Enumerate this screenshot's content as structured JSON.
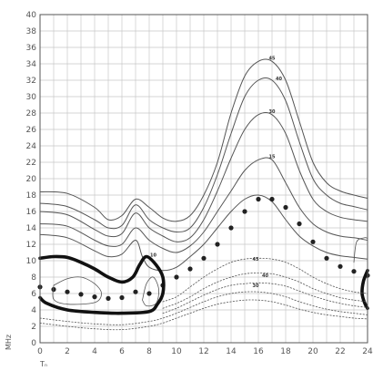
{
  "chart_data": {
    "type": "line",
    "title": "",
    "xlabel": "Tₙ",
    "ylabel": "MHz",
    "xlim": [
      0,
      24
    ],
    "ylim": [
      0,
      40
    ],
    "x_ticks": [
      "0",
      "2",
      "4",
      "6",
      "8",
      "10",
      "12",
      "14",
      "16",
      "18",
      "20",
      "22",
      "24"
    ],
    "y_ticks": [
      "0",
      "2",
      "4",
      "6",
      "8",
      "10",
      "12",
      "14",
      "16",
      "18",
      "20",
      "22",
      "24",
      "26",
      "28",
      "30",
      "32",
      "34",
      "36",
      "38",
      "40"
    ],
    "grid": true,
    "series": [
      {
        "name": "",
        "label": "45",
        "label_at": [
          17.0,
          34.5
        ],
        "style": "solid",
        "points": [
          [
            0,
            18.4
          ],
          [
            2,
            18.2
          ],
          [
            4,
            16.5
          ],
          [
            5,
            15.0
          ],
          [
            6,
            15.5
          ],
          [
            7,
            17.5
          ],
          [
            8,
            16.5
          ],
          [
            9,
            15.2
          ],
          [
            10,
            14.8
          ],
          [
            11,
            15.5
          ],
          [
            12,
            18.0
          ],
          [
            13,
            22.0
          ],
          [
            14,
            28.0
          ],
          [
            15,
            32.5
          ],
          [
            16,
            34.3
          ],
          [
            17,
            34.3
          ],
          [
            18,
            32.0
          ],
          [
            19,
            27.0
          ],
          [
            20,
            22.0
          ],
          [
            21,
            19.5
          ],
          [
            22,
            18.5
          ],
          [
            23,
            18.0
          ],
          [
            24,
            17.6
          ]
        ]
      },
      {
        "name": "",
        "label": "40",
        "label_at": [
          17.5,
          32.0
        ],
        "style": "solid",
        "points": [
          [
            0,
            17.0
          ],
          [
            2,
            16.6
          ],
          [
            4,
            15.0
          ],
          [
            5,
            14.0
          ],
          [
            6,
            14.3
          ],
          [
            7,
            16.8
          ],
          [
            8,
            15.0
          ],
          [
            9,
            14.0
          ],
          [
            10,
            13.5
          ],
          [
            11,
            14.0
          ],
          [
            12,
            16.5
          ],
          [
            13,
            20.5
          ],
          [
            14,
            25.5
          ],
          [
            15,
            30.0
          ],
          [
            16,
            32.0
          ],
          [
            17,
            32.0
          ],
          [
            18,
            29.5
          ],
          [
            19,
            24.5
          ],
          [
            20,
            20.0
          ],
          [
            21,
            18.0
          ],
          [
            22,
            17.0
          ],
          [
            23,
            16.6
          ],
          [
            24,
            16.2
          ]
        ]
      },
      {
        "name": "",
        "label": "30",
        "label_at": [
          17.0,
          28.0
        ],
        "style": "solid",
        "points": [
          [
            0,
            16.0
          ],
          [
            2,
            15.6
          ],
          [
            4,
            13.8
          ],
          [
            5,
            13.0
          ],
          [
            6,
            13.3
          ],
          [
            7,
            15.8
          ],
          [
            8,
            14.0
          ],
          [
            9,
            13.0
          ],
          [
            10,
            12.3
          ],
          [
            11,
            12.8
          ],
          [
            12,
            15.0
          ],
          [
            13,
            18.5
          ],
          [
            14,
            22.5
          ],
          [
            15,
            26.0
          ],
          [
            16,
            27.8
          ],
          [
            17,
            27.8
          ],
          [
            18,
            25.5
          ],
          [
            19,
            21.0
          ],
          [
            20,
            17.5
          ],
          [
            21,
            16.0
          ],
          [
            22,
            15.3
          ],
          [
            23,
            15.0
          ],
          [
            24,
            14.8
          ]
        ]
      },
      {
        "name": "",
        "label": "15",
        "label_at": [
          17.0,
          22.5
        ],
        "style": "solid",
        "points": [
          [
            0,
            14.5
          ],
          [
            2,
            14.2
          ],
          [
            4,
            12.5
          ],
          [
            5,
            11.8
          ],
          [
            6,
            12.0
          ],
          [
            7,
            14.0
          ],
          [
            8,
            12.5
          ],
          [
            9,
            11.5
          ],
          [
            10,
            11.0
          ],
          [
            11,
            11.8
          ],
          [
            12,
            13.5
          ],
          [
            13,
            16.0
          ],
          [
            14,
            18.5
          ],
          [
            15,
            21.0
          ],
          [
            16,
            22.3
          ],
          [
            17,
            22.3
          ],
          [
            18,
            19.5
          ],
          [
            19,
            16.5
          ],
          [
            20,
            14.5
          ],
          [
            21,
            13.5
          ],
          [
            22,
            13.0
          ],
          [
            23,
            12.8
          ],
          [
            24,
            12.5
          ]
        ]
      },
      {
        "name": "",
        "label": "10",
        "label_at": [
          8.3,
          10.5
        ],
        "style": "solid",
        "points": [
          [
            0,
            13.2
          ],
          [
            2,
            12.8
          ],
          [
            4,
            11.2
          ],
          [
            5,
            10.5
          ],
          [
            6,
            10.8
          ],
          [
            7,
            12.5
          ],
          [
            7.5,
            10.5
          ],
          [
            8,
            9.2
          ],
          [
            9,
            8.8
          ],
          [
            10,
            9.2
          ],
          [
            11,
            10.5
          ],
          [
            12,
            12.0
          ],
          [
            13,
            14.0
          ],
          [
            14,
            16.0
          ],
          [
            15,
            17.5
          ],
          [
            16,
            18.0
          ],
          [
            17,
            17.2
          ],
          [
            18,
            15.0
          ],
          [
            19,
            13.0
          ],
          [
            20,
            11.8
          ],
          [
            21,
            11.0
          ],
          [
            22,
            10.6
          ],
          [
            23,
            10.4
          ],
          [
            24,
            10.2
          ]
        ]
      },
      {
        "name": "",
        "label": "",
        "style": "dots",
        "points": [
          [
            0,
            6.8
          ],
          [
            1,
            6.5
          ],
          [
            2,
            6.2
          ],
          [
            3,
            5.9
          ],
          [
            4,
            5.6
          ],
          [
            5,
            5.4
          ],
          [
            6,
            5.5
          ],
          [
            7,
            6.2
          ],
          [
            8,
            6.0
          ],
          [
            9,
            7.0
          ],
          [
            10,
            8.0
          ],
          [
            11,
            9.0
          ],
          [
            12,
            10.3
          ],
          [
            13,
            12.0
          ],
          [
            14,
            14.0
          ],
          [
            15,
            16.0
          ],
          [
            16,
            17.5
          ],
          [
            17,
            17.5
          ],
          [
            18,
            16.5
          ],
          [
            19,
            14.5
          ],
          [
            20,
            12.3
          ],
          [
            21,
            10.3
          ],
          [
            22,
            9.3
          ],
          [
            23,
            8.7
          ],
          [
            24,
            8.2
          ]
        ]
      },
      {
        "name": "",
        "label": "",
        "style": "thick",
        "points": [
          [
            0,
            10.3
          ],
          [
            1,
            10.5
          ],
          [
            2,
            10.4
          ],
          [
            3,
            9.8
          ],
          [
            4,
            9.0
          ],
          [
            5,
            8.0
          ],
          [
            6,
            7.4
          ],
          [
            6.8,
            8.0
          ],
          [
            7.3,
            9.5
          ],
          [
            7.8,
            10.5
          ],
          [
            8.5,
            9.5
          ],
          [
            9,
            8.0
          ],
          [
            9,
            6.0
          ],
          [
            8.6,
            4.7
          ],
          [
            8,
            3.8
          ],
          [
            6,
            3.6
          ],
          [
            4,
            3.7
          ],
          [
            2,
            4.0
          ],
          [
            0.5,
            4.8
          ],
          [
            0,
            5.5
          ]
        ]
      },
      {
        "name": "",
        "label": "",
        "style": "thick",
        "points": [
          [
            24,
            8.8
          ],
          [
            23.7,
            7.5
          ],
          [
            23.6,
            6.0
          ],
          [
            23.8,
            4.8
          ],
          [
            24,
            4.2
          ]
        ]
      },
      {
        "name": "",
        "label": "",
        "style": "solid-thin",
        "points": [
          [
            1,
            7.0
          ],
          [
            2,
            7.8
          ],
          [
            3,
            8.0
          ],
          [
            4,
            7.2
          ],
          [
            4.5,
            6.0
          ],
          [
            4,
            4.9
          ],
          [
            2,
            4.7
          ],
          [
            1,
            5.3
          ],
          [
            1,
            7.0
          ]
        ]
      },
      {
        "name": "",
        "label": "",
        "style": "solid-thin",
        "points": [
          [
            7.5,
            5.2
          ],
          [
            7.8,
            7.2
          ],
          [
            8.3,
            8.0
          ],
          [
            8.7,
            6.5
          ],
          [
            8.5,
            4.8
          ],
          [
            7.8,
            4.5
          ],
          [
            7.5,
            5.2
          ]
        ]
      },
      {
        "name": "",
        "label": "",
        "style": "solid-thin",
        "points": [
          [
            23,
            9.8
          ],
          [
            23.2,
            12.3
          ],
          [
            23.8,
            12.8
          ],
          [
            24,
            12.7
          ]
        ]
      },
      {
        "name": "",
        "label": "45",
        "label_at": [
          15.8,
          10.0
        ],
        "style": "dashed",
        "points": [
          [
            9,
            5.0
          ],
          [
            10,
            5.6
          ],
          [
            11,
            6.8
          ],
          [
            12,
            8.0
          ],
          [
            13,
            9.0
          ],
          [
            14,
            9.8
          ],
          [
            15,
            10.2
          ],
          [
            16,
            10.3
          ],
          [
            17,
            10.2
          ],
          [
            18,
            9.8
          ],
          [
            19,
            9.0
          ],
          [
            20,
            8.0
          ],
          [
            21,
            7.2
          ],
          [
            22,
            6.6
          ],
          [
            23,
            6.2
          ],
          [
            24,
            6.0
          ]
        ]
      },
      {
        "name": "",
        "label": "40",
        "label_at": [
          16.5,
          8.0
        ],
        "style": "dashed",
        "points": [
          [
            9,
            4.2
          ],
          [
            10,
            4.8
          ],
          [
            11,
            5.6
          ],
          [
            12,
            6.6
          ],
          [
            13,
            7.4
          ],
          [
            14,
            8.0
          ],
          [
            15,
            8.4
          ],
          [
            16,
            8.5
          ],
          [
            17,
            8.4
          ],
          [
            18,
            8.0
          ],
          [
            19,
            7.4
          ],
          [
            20,
            6.6
          ],
          [
            21,
            6.0
          ],
          [
            22,
            5.5
          ],
          [
            23,
            5.2
          ],
          [
            24,
            5.0
          ]
        ]
      },
      {
        "name": "",
        "label": "30",
        "label_at": [
          15.8,
          6.8
        ],
        "style": "dashed",
        "points": [
          [
            9,
            3.6
          ],
          [
            10,
            4.2
          ],
          [
            11,
            5.0
          ],
          [
            12,
            5.8
          ],
          [
            13,
            6.5
          ],
          [
            14,
            7.0
          ],
          [
            15,
            7.2
          ],
          [
            16,
            7.3
          ],
          [
            17,
            7.2
          ],
          [
            18,
            6.9
          ],
          [
            19,
            6.3
          ],
          [
            20,
            5.7
          ],
          [
            21,
            5.2
          ],
          [
            22,
            4.8
          ],
          [
            23,
            4.5
          ],
          [
            24,
            4.3
          ]
        ]
      },
      {
        "name": "",
        "label": "",
        "style": "dashed",
        "points": [
          [
            0,
            3.0
          ],
          [
            2,
            2.6
          ],
          [
            4,
            2.3
          ],
          [
            6,
            2.2
          ],
          [
            8,
            2.6
          ],
          [
            9,
            3.0
          ],
          [
            10,
            3.6
          ],
          [
            11,
            4.3
          ],
          [
            12,
            5.0
          ],
          [
            13,
            5.6
          ],
          [
            14,
            6.0
          ],
          [
            15,
            6.2
          ],
          [
            16,
            6.2
          ],
          [
            17,
            6.0
          ],
          [
            18,
            5.6
          ],
          [
            19,
            5.0
          ],
          [
            20,
            4.5
          ],
          [
            21,
            4.1
          ],
          [
            22,
            3.8
          ],
          [
            23,
            3.6
          ],
          [
            24,
            3.4
          ]
        ]
      },
      {
        "name": "",
        "label": "",
        "style": "dashed",
        "points": [
          [
            0,
            2.4
          ],
          [
            2,
            2.0
          ],
          [
            4,
            1.7
          ],
          [
            6,
            1.6
          ],
          [
            8,
            2.0
          ],
          [
            9,
            2.4
          ],
          [
            10,
            3.0
          ],
          [
            11,
            3.6
          ],
          [
            12,
            4.2
          ],
          [
            13,
            4.7
          ],
          [
            14,
            5.0
          ],
          [
            15,
            5.2
          ],
          [
            16,
            5.2
          ],
          [
            17,
            5.0
          ],
          [
            18,
            4.6
          ],
          [
            19,
            4.1
          ],
          [
            20,
            3.7
          ],
          [
            21,
            3.4
          ],
          [
            22,
            3.2
          ],
          [
            23,
            3.0
          ],
          [
            24,
            2.9
          ]
        ]
      }
    ],
    "colors": {
      "line": "#555555",
      "thick": "#111111",
      "dots": "#222222",
      "grid": "#c8c8c8",
      "frame": "#555555"
    }
  }
}
